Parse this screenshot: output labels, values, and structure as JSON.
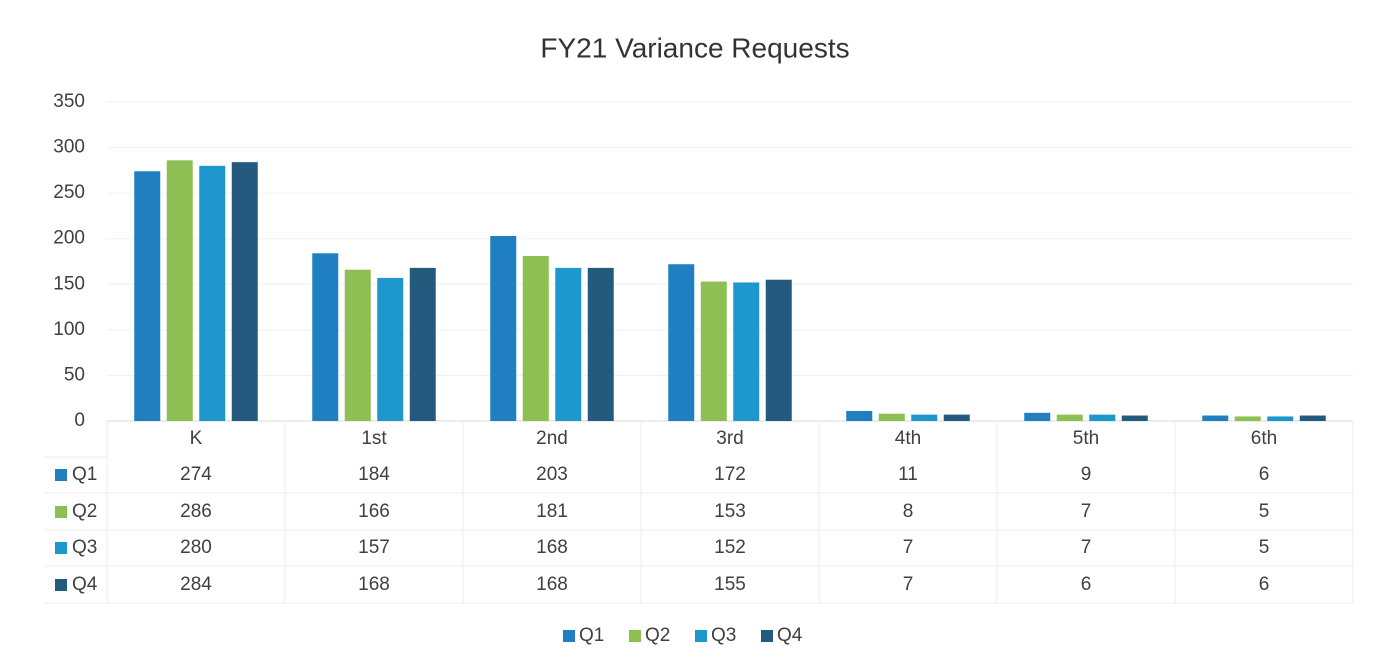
{
  "chart_data": {
    "type": "bar",
    "title": "FY21 Variance Requests",
    "categories": [
      "K",
      "1st",
      "2nd",
      "3rd",
      "4th",
      "5th",
      "6th"
    ],
    "series": [
      {
        "name": "Q1",
        "color": "#1f7fc0",
        "values": [
          274,
          184,
          203,
          172,
          11,
          9,
          6
        ]
      },
      {
        "name": "Q2",
        "color": "#8dbf52",
        "values": [
          286,
          166,
          181,
          153,
          8,
          7,
          5
        ]
      },
      {
        "name": "Q3",
        "color": "#1e97cf",
        "values": [
          280,
          157,
          168,
          152,
          7,
          7,
          5
        ]
      },
      {
        "name": "Q4",
        "color": "#245a7e",
        "values": [
          284,
          168,
          168,
          155,
          7,
          6,
          6
        ]
      }
    ],
    "ylim": [
      0,
      350
    ],
    "yticks": [
      0,
      50,
      100,
      150,
      200,
      250,
      300,
      350
    ],
    "grid": true,
    "legend": "bottom"
  }
}
